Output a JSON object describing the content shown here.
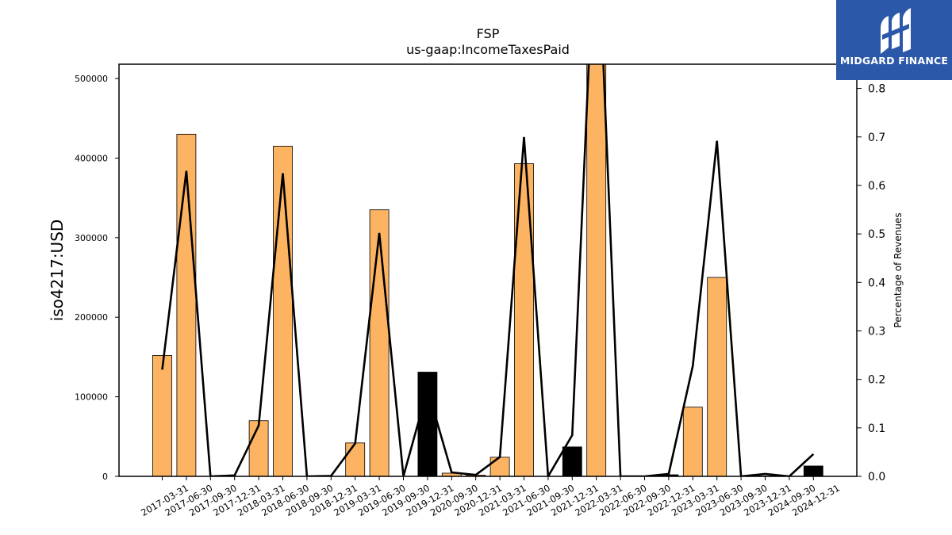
{
  "brand": {
    "name": "MIDGARD FINANCE",
    "color": "#2b58a8"
  },
  "chart_data": {
    "type": "bar",
    "title": "FSP",
    "subtitle": "us-gaap:IncomeTaxesPaid",
    "ylabel": "iso4217:USD",
    "y2label": "Percentage of Revenues",
    "ylim": [
      0,
      518000
    ],
    "y2lim": [
      0,
      0.85
    ],
    "yticks": [
      0,
      100000,
      200000,
      300000,
      400000,
      500000
    ],
    "y2ticks": [
      "0.0",
      "0.1",
      "0.2",
      "0.3",
      "0.4",
      "0.5",
      "0.6",
      "0.7",
      "0.8"
    ],
    "categories": [
      "2017-03-31",
      "2017-06-30",
      "2017-09-30",
      "2017-12-31",
      "2018-03-31",
      "2018-06-30",
      "2018-09-30",
      "2018-12-31",
      "2019-03-31",
      "2019-06-30",
      "2019-09-30",
      "2019-12-31",
      "2020-09-30",
      "2020-12-31",
      "2021-03-31",
      "2021-06-30",
      "2021-09-30",
      "2021-12-31",
      "2022-03-31",
      "2022-06-30",
      "2022-09-30",
      "2022-12-31",
      "2023-03-31",
      "2023-06-30",
      "2023-09-30",
      "2023-12-31",
      "2024-09-30",
      "2024-12-31"
    ],
    "series": [
      {
        "kind": "bar",
        "values": [
          152000,
          430000,
          0,
          0,
          70000,
          415000,
          0,
          0,
          42000,
          335000,
          0,
          131000,
          4000,
          1500,
          24000,
          393000,
          0,
          37000,
          525000,
          0,
          0,
          2000,
          87000,
          250000,
          0,
          500,
          0,
          13000
        ],
        "colors": [
          "#fdb462",
          "#fdb462",
          "#fdb462",
          "#fdb462",
          "#fdb462",
          "#fdb462",
          "#fdb462",
          "#fdb462",
          "#fdb462",
          "#fdb462",
          "#fdb462",
          "#000000",
          "#fdb462",
          "#fdb462",
          "#fdb462",
          "#fdb462",
          "#fdb462",
          "#000000",
          "#fdb462",
          "#fdb462",
          "#fdb462",
          "#000000",
          "#fdb462",
          "#fdb462",
          "#fdb462",
          "#000000",
          "#fdb462",
          "#000000"
        ]
      },
      {
        "kind": "line",
        "axis": "right",
        "color": "#000000",
        "values": [
          0.22,
          0.63,
          0.0,
          0.002,
          0.105,
          0.625,
          0.0,
          0.001,
          0.068,
          0.502,
          0.0,
          0.18,
          0.008,
          0.003,
          0.04,
          0.7,
          0.0,
          0.085,
          1.2,
          0.0,
          0.0,
          0.005,
          0.228,
          0.692,
          0.0,
          0.005,
          0.0,
          0.046
        ]
      }
    ]
  }
}
